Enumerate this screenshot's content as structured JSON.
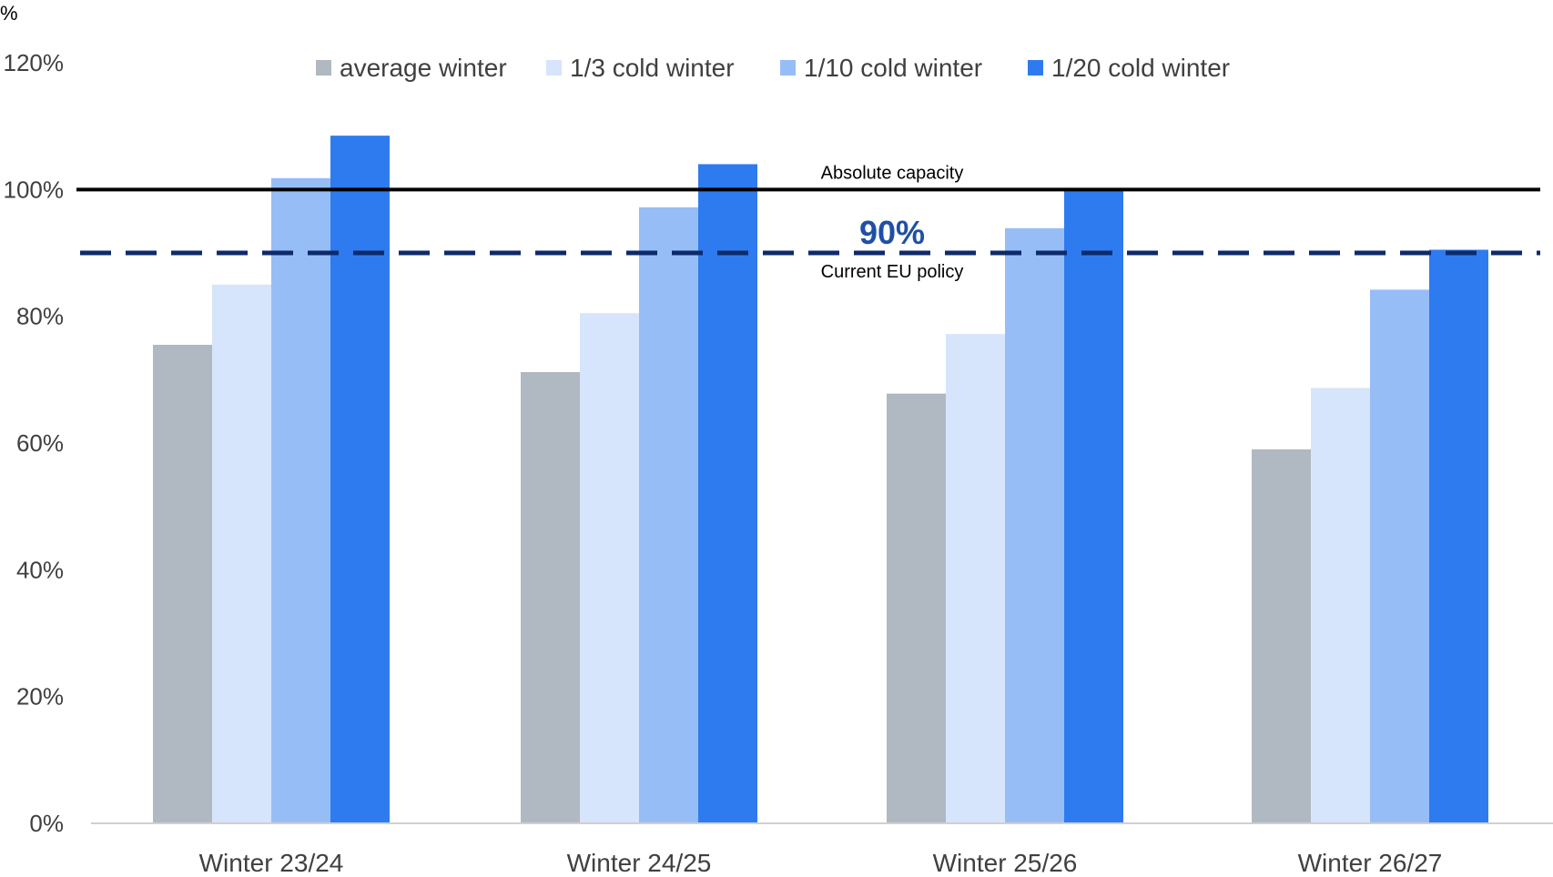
{
  "chart_data": {
    "type": "bar",
    "ylabel": "%",
    "ylim": [
      0,
      120
    ],
    "yticks": [
      "0%",
      "20%",
      "40%",
      "60%",
      "80%",
      "100%",
      "120%"
    ],
    "categories": [
      "Winter 23/24",
      "Winter 24/25",
      "Winter 25/26",
      "Winter 26/27"
    ],
    "series": [
      {
        "name": "average winter",
        "color": "#b0b8c1",
        "values": [
          75.5,
          71.2,
          67.8,
          59
        ]
      },
      {
        "name": "1/3 cold winter",
        "color": "#d6e5fb",
        "values": [
          85,
          80.5,
          77.2,
          68.7
        ]
      },
      {
        "name": "1/10 cold winter",
        "color": "#97bdf7",
        "values": [
          101.8,
          97.2,
          93.9,
          84.2
        ]
      },
      {
        "name": "1/20 cold winter",
        "color": "#2e7bef",
        "values": [
          108.5,
          104,
          100,
          90.5
        ]
      }
    ],
    "legend_position": "top",
    "reference_lines": [
      {
        "value": 100,
        "label": "Absolute capacity",
        "style": "solid",
        "color": "#000000"
      },
      {
        "value": 90,
        "label": "Current EU policy",
        "value_label": "90%",
        "style": "dashed",
        "color": "#0d2a6b"
      }
    ],
    "accent_color": "#1f4fa6"
  }
}
